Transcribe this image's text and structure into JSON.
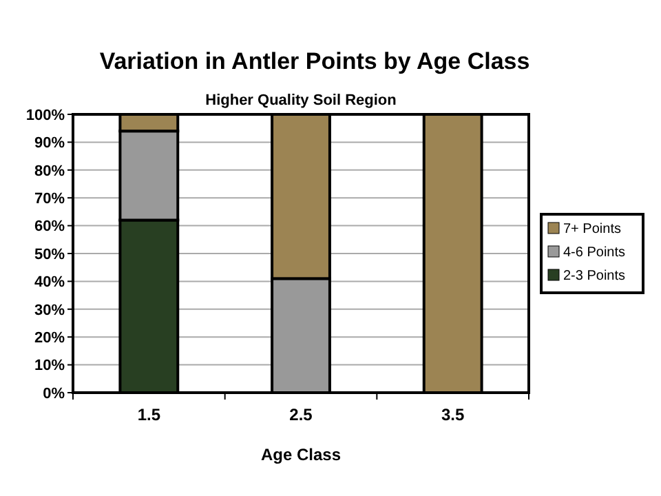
{
  "chart_data": {
    "type": "bar",
    "title": "Variation in Antler Points by Age Class",
    "subtitle": "Higher Quality Soil Region",
    "xlabel": "Age Class",
    "categories": [
      "1.5",
      "2.5",
      "3.5"
    ],
    "stacked": true,
    "series": [
      {
        "name": "2-3 Points",
        "color": "#283f22",
        "values": [
          62,
          0,
          0
        ]
      },
      {
        "name": "4-6 Points",
        "color": "#999999",
        "values": [
          32,
          41,
          0
        ]
      },
      {
        "name": "7+ Points",
        "color": "#9c8453",
        "values": [
          6,
          59,
          100
        ]
      }
    ],
    "ylim": [
      0,
      100
    ],
    "yticks": [
      {
        "value": 0,
        "label": "0%"
      },
      {
        "value": 10,
        "label": "10%"
      },
      {
        "value": 20,
        "label": "20%"
      },
      {
        "value": 30,
        "label": "30%"
      },
      {
        "value": 40,
        "label": "40%"
      },
      {
        "value": 50,
        "label": "50%"
      },
      {
        "value": 60,
        "label": "60%"
      },
      {
        "value": 70,
        "label": "70%"
      },
      {
        "value": 80,
        "label": "80%"
      },
      {
        "value": 90,
        "label": "90%"
      },
      {
        "value": 100,
        "label": "100%"
      }
    ],
    "grid": "y",
    "legend": "right"
  }
}
